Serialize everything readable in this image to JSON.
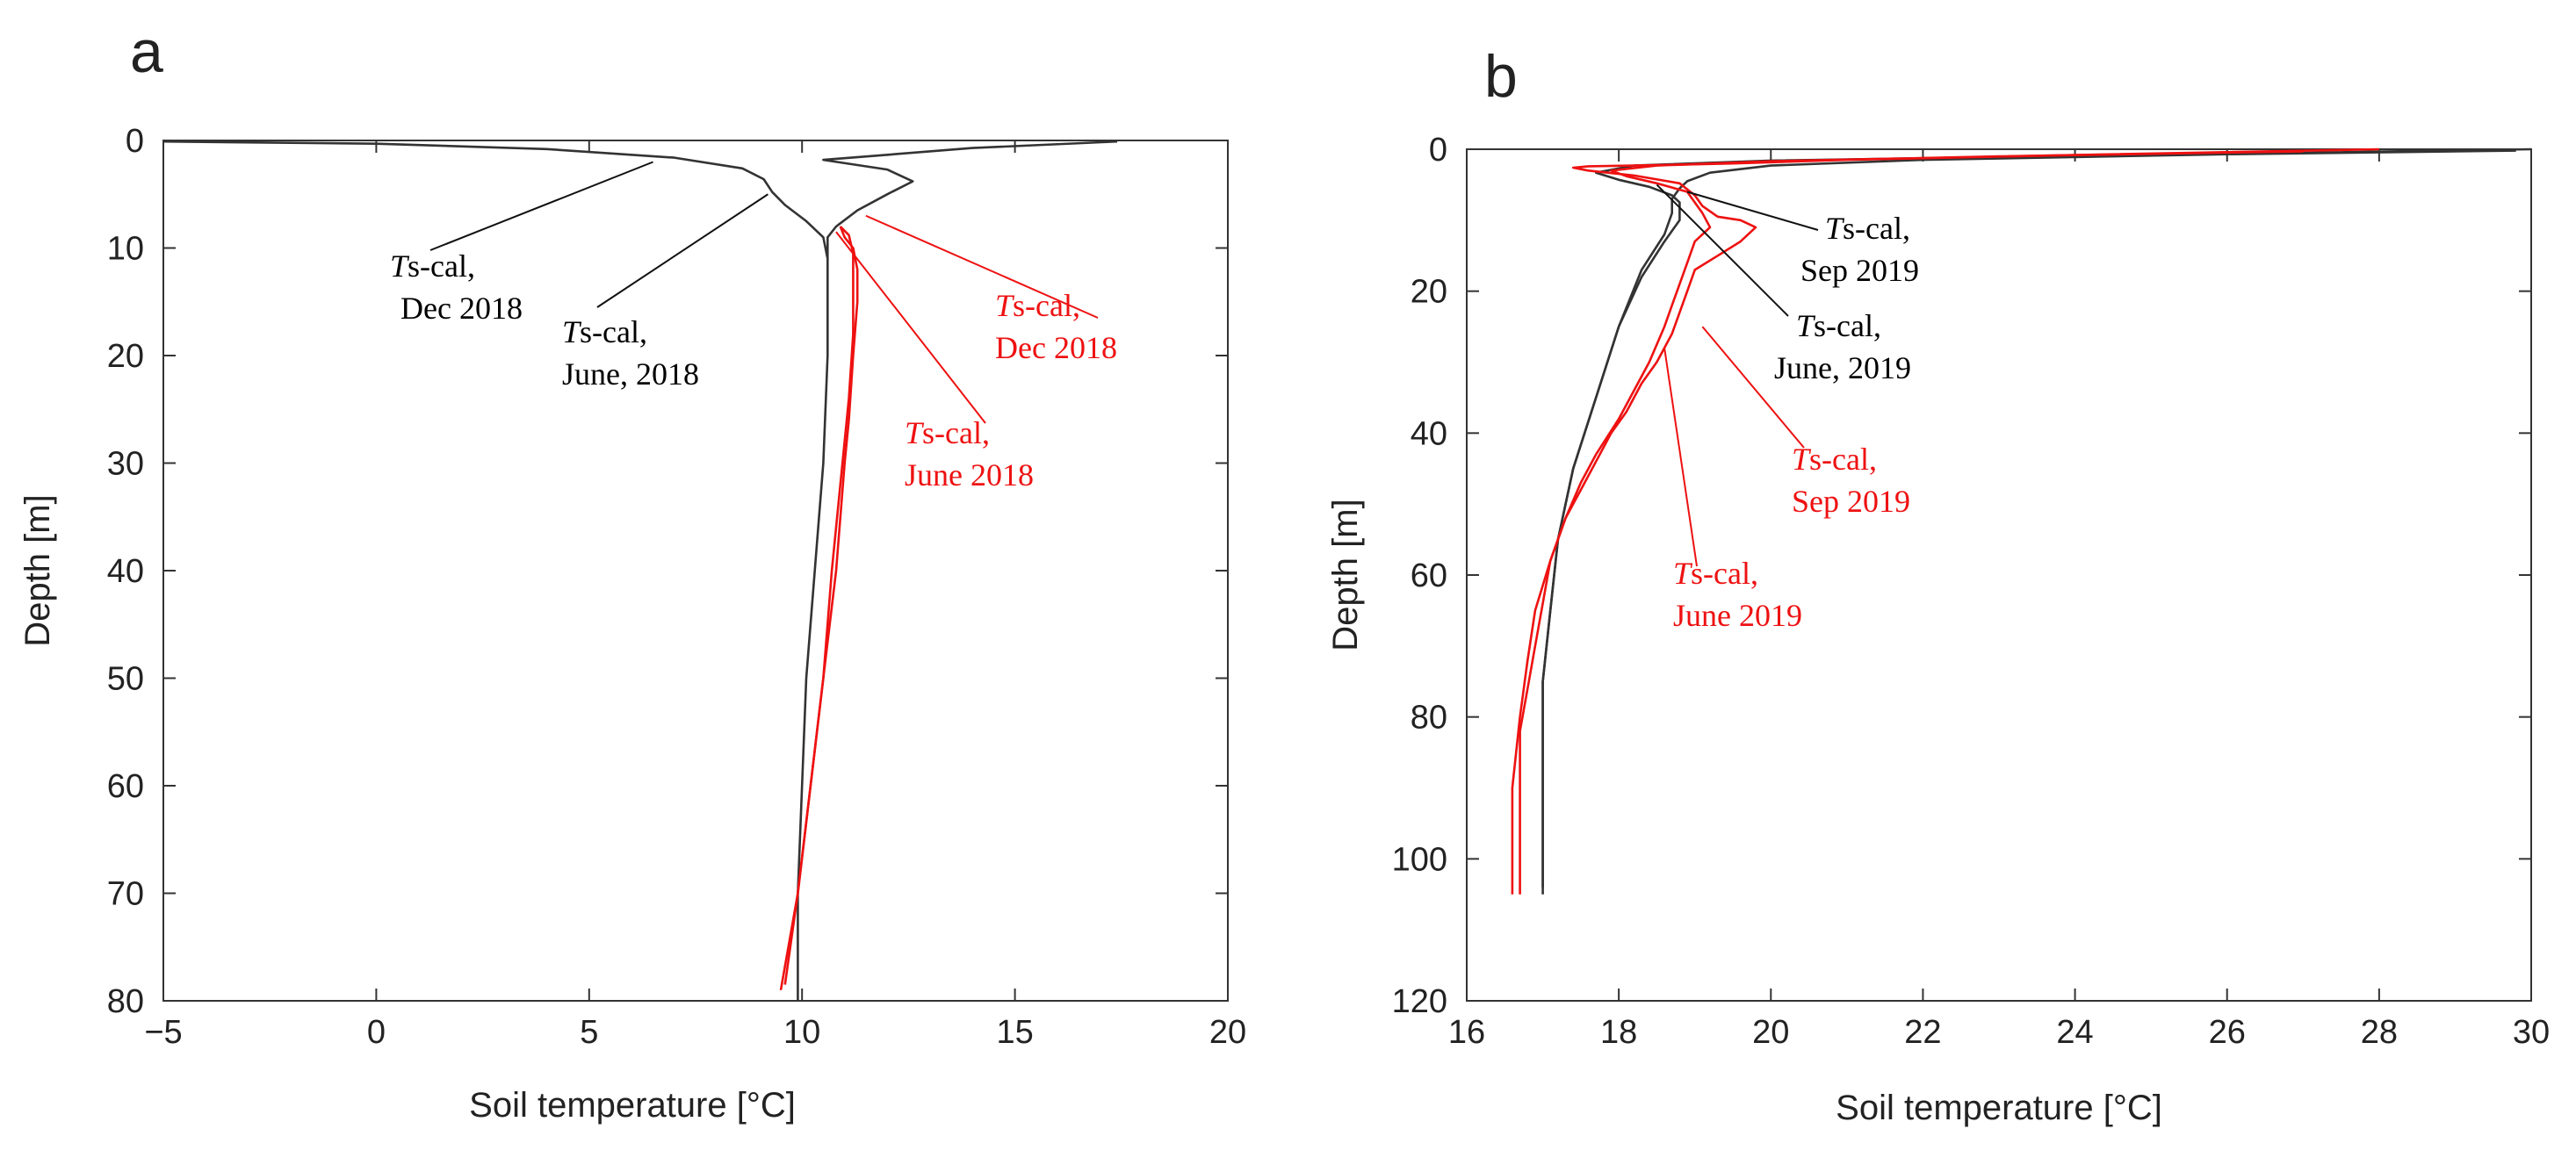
{
  "chart_data": [
    {
      "panel_label": "a",
      "type": "line",
      "xlabel": "Soil temperature [°C]",
      "ylabel": "Depth [m]",
      "xlim": [
        -5,
        20
      ],
      "ylim": [
        0,
        80
      ],
      "y_inverted": true,
      "xticks": [
        "−5",
        "0",
        "5",
        "10",
        "15",
        "20"
      ],
      "yticks": [
        "0",
        "10",
        "20",
        "30",
        "40",
        "50",
        "60",
        "70",
        "80"
      ],
      "series": [
        {
          "name": "Ts-cal, Dec 2018",
          "color": "#333333",
          "points": [
            [
              -5,
              0.1
            ],
            [
              0,
              0.3
            ],
            [
              4,
              0.8
            ],
            [
              7,
              1.6
            ],
            [
              8.6,
              2.6
            ],
            [
              9.1,
              3.6
            ],
            [
              9.3,
              4.8
            ],
            [
              9.6,
              6
            ],
            [
              10.1,
              7.5
            ],
            [
              10.5,
              9
            ],
            [
              10.6,
              11
            ],
            [
              10.6,
              20
            ],
            [
              10.5,
              30
            ],
            [
              10.3,
              40
            ],
            [
              10.1,
              50
            ],
            [
              10,
              60
            ],
            [
              9.9,
              70
            ],
            [
              9.9,
              80
            ]
          ]
        },
        {
          "name": "Ts-cal, June 2018",
          "color": "#333333",
          "points": [
            [
              17.4,
              0.1
            ],
            [
              14,
              0.7
            ],
            [
              10.5,
              1.8
            ],
            [
              12,
              2.7
            ],
            [
              12.6,
              3.8
            ],
            [
              12,
              5
            ],
            [
              11.3,
              6.5
            ],
            [
              10.8,
              8
            ],
            [
              10.6,
              9
            ],
            [
              10.6,
              10
            ],
            [
              10.6,
              11
            ]
          ]
        },
        {
          "name": "Ts-cal, Dec 2018",
          "color": "#ee1111",
          "points": [
            [
              10.9,
              8
            ],
            [
              11,
              9
            ],
            [
              11.2,
              10
            ],
            [
              11.3,
              12
            ],
            [
              11.3,
              15
            ],
            [
              11.2,
              20
            ],
            [
              11.1,
              26
            ],
            [
              11,
              30
            ],
            [
              10.8,
              40
            ],
            [
              10.5,
              50
            ],
            [
              10.2,
              60
            ],
            [
              9.9,
              70
            ],
            [
              9.6,
              78.5
            ]
          ]
        },
        {
          "name": "Ts-cal, June 2018",
          "color": "#ee1111",
          "points": [
            [
              10.9,
              8
            ],
            [
              11.1,
              8.8
            ],
            [
              11.2,
              10.5
            ],
            [
              11.2,
              13
            ],
            [
              11.2,
              18
            ],
            [
              11.1,
              24
            ],
            [
              10.9,
              32
            ],
            [
              10.7,
              40
            ],
            [
              10.5,
              50
            ],
            [
              10.2,
              60
            ],
            [
              9.9,
              70
            ],
            [
              9.5,
              79
            ]
          ]
        }
      ],
      "annotations": [
        {
          "prefix": "T",
          "suffix": "s-cal,",
          "line2": "Dec 2018",
          "color": "#111111"
        },
        {
          "prefix": "T",
          "suffix": "s-cal,",
          "line2": "June, 2018",
          "color": "#111111"
        },
        {
          "prefix": "T",
          "suffix": "s-cal,",
          "line2": "Dec 2018",
          "color": "#ee1111"
        },
        {
          "prefix": "T",
          "suffix": "s-cal,",
          "line2": "June 2018",
          "color": "#ee1111"
        }
      ],
      "leader_targets": [
        {
          "annotation": 0,
          "to": [
            6.5,
            2
          ]
        },
        {
          "annotation": 1,
          "to": [
            9.2,
            5
          ]
        },
        {
          "annotation": 2,
          "to": [
            11.5,
            7
          ]
        },
        {
          "annotation": 3,
          "to": [
            10.8,
            8.5
          ]
        }
      ]
    },
    {
      "panel_label": "b",
      "type": "line",
      "xlabel": "Soil temperature [°C]",
      "ylabel": "Depth [m]",
      "xlim": [
        16,
        30
      ],
      "ylim": [
        0,
        120
      ],
      "y_inverted": true,
      "xticks": [
        "16",
        "18",
        "20",
        "22",
        "24",
        "26",
        "28",
        "30"
      ],
      "yticks": [
        "0",
        "20",
        "40",
        "60",
        "80",
        "100",
        "120"
      ],
      "series": [
        {
          "name": "Ts-cal, Sep 2019",
          "color": "#333333",
          "points": [
            [
              30,
              0
            ],
            [
              27,
              0.5
            ],
            [
              23.5,
              1
            ],
            [
              20,
              1.6
            ],
            [
              18.2,
              2.3
            ],
            [
              17.7,
              3.3
            ],
            [
              18,
              4.3
            ],
            [
              18.4,
              5.3
            ],
            [
              18.7,
              6.5
            ],
            [
              18.8,
              7.5
            ],
            [
              18.8,
              10
            ],
            [
              18.6,
              13
            ],
            [
              18.3,
              18
            ],
            [
              18,
              25
            ],
            [
              17.7,
              35
            ],
            [
              17.4,
              45
            ],
            [
              17.2,
              55
            ],
            [
              17.1,
              65
            ],
            [
              17,
              75
            ],
            [
              17,
              85
            ],
            [
              17,
              95
            ],
            [
              17,
              105
            ]
          ]
        },
        {
          "name": "Ts-cal, June, 2019",
          "color": "#333333",
          "points": [
            [
              29.8,
              0.2
            ],
            [
              26,
              0.7
            ],
            [
              22,
              1.5
            ],
            [
              20,
              2.3
            ],
            [
              19.2,
              3.3
            ],
            [
              18.9,
              4.5
            ],
            [
              18.8,
              5.5
            ],
            [
              18.7,
              7
            ],
            [
              18.7,
              9
            ],
            [
              18.6,
              12
            ],
            [
              18.3,
              17
            ],
            [
              18,
              25
            ],
            [
              17.7,
              35
            ],
            [
              17.4,
              45
            ],
            [
              17.2,
              55
            ],
            [
              17.1,
              65
            ],
            [
              17,
              75
            ],
            [
              17,
              90
            ],
            [
              17,
              104
            ]
          ]
        },
        {
          "name": "Ts-cal, Sep 2019",
          "color": "#ee1111",
          "points": [
            [
              28,
              0
            ],
            [
              24,
              0.8
            ],
            [
              21,
              1.5
            ],
            [
              19.5,
              2
            ],
            [
              18.2,
              2.3
            ],
            [
              17.6,
              2.4
            ],
            [
              17.4,
              2.6
            ],
            [
              17.6,
              3
            ],
            [
              18.2,
              3.7
            ],
            [
              18.8,
              4.8
            ],
            [
              19,
              6.5
            ],
            [
              19.1,
              8
            ],
            [
              19.3,
              9.5
            ],
            [
              19.6,
              10
            ],
            [
              19.8,
              11
            ],
            [
              19.6,
              13
            ],
            [
              19.3,
              15
            ],
            [
              19,
              17
            ],
            [
              18.9,
              20
            ],
            [
              18.8,
              23
            ],
            [
              18.7,
              26
            ],
            [
              18.5,
              30
            ],
            [
              18.3,
              33
            ],
            [
              18.1,
              37
            ],
            [
              17.9,
              40
            ],
            [
              17.7,
              44
            ],
            [
              17.5,
              48
            ],
            [
              17.3,
              52
            ],
            [
              17.1,
              58
            ],
            [
              17,
              64
            ],
            [
              16.9,
              70
            ],
            [
              16.8,
              76
            ],
            [
              16.7,
              82
            ],
            [
              16.7,
              90
            ],
            [
              16.7,
              98
            ],
            [
              16.7,
              105
            ]
          ]
        },
        {
          "name": "Ts-cal, June 2019",
          "color": "#ee1111",
          "points": [
            [
              27,
              0.3
            ],
            [
              23,
              1
            ],
            [
              20,
              1.7
            ],
            [
              18.5,
              2.3
            ],
            [
              17.9,
              3
            ],
            [
              18.1,
              3.8
            ],
            [
              18.5,
              4.8
            ],
            [
              18.9,
              6
            ],
            [
              19,
              7.5
            ],
            [
              19.1,
              9
            ],
            [
              19.2,
              11
            ],
            [
              19,
              13
            ],
            [
              18.9,
              16
            ],
            [
              18.8,
              19
            ],
            [
              18.7,
              22
            ],
            [
              18.6,
              25
            ],
            [
              18.4,
              30
            ],
            [
              18.2,
              34
            ],
            [
              18,
              38
            ],
            [
              17.7,
              43
            ],
            [
              17.5,
              47
            ],
            [
              17.3,
              52
            ],
            [
              17.1,
              58
            ],
            [
              16.9,
              65
            ],
            [
              16.8,
              72
            ],
            [
              16.7,
              80
            ],
            [
              16.6,
              90
            ],
            [
              16.6,
              100
            ],
            [
              16.6,
              105
            ]
          ]
        }
      ],
      "annotations": [
        {
          "prefix": "T",
          "suffix": "s-cal,",
          "line2": "Sep 2019",
          "color": "#111111"
        },
        {
          "prefix": "T",
          "suffix": "s-cal,",
          "line2": "June, 2019",
          "color": "#111111"
        },
        {
          "prefix": "T",
          "suffix": "s-cal,",
          "line2": "Sep 2019",
          "color": "#ee1111"
        },
        {
          "prefix": "T",
          "suffix": "s-cal,",
          "line2": "June 2019",
          "color": "#ee1111"
        }
      ],
      "leader_targets": [
        {
          "annotation": 0,
          "to": [
            18.9,
            6
          ]
        },
        {
          "annotation": 1,
          "to": [
            18.5,
            5
          ]
        },
        {
          "annotation": 2,
          "to": [
            19.1,
            25
          ]
        },
        {
          "annotation": 3,
          "to": [
            18.6,
            28
          ]
        }
      ]
    }
  ]
}
